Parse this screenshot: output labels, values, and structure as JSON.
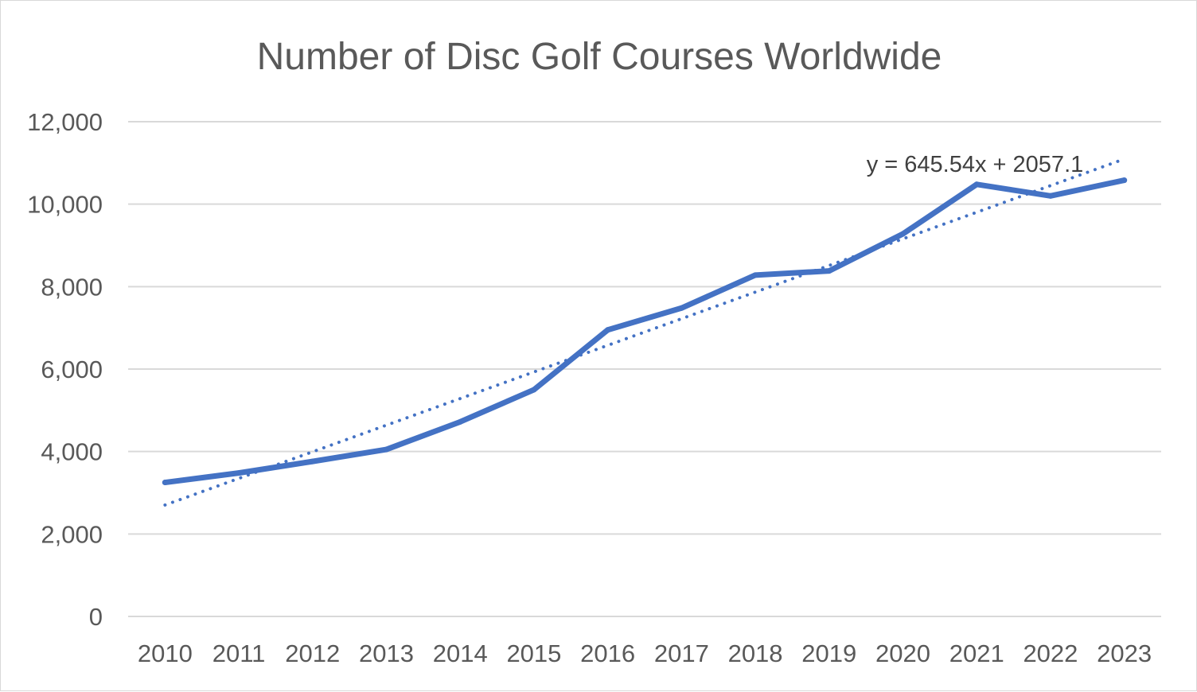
{
  "chart_data": {
    "type": "line",
    "title": "Number of Disc Golf Courses Worldwide",
    "xlabel": "",
    "ylabel": "",
    "categories": [
      "2010",
      "2011",
      "2012",
      "2013",
      "2014",
      "2015",
      "2016",
      "2017",
      "2018",
      "2019",
      "2020",
      "2021",
      "2022",
      "2023"
    ],
    "series": [
      {
        "values": [
          3250,
          3480,
          3760,
          4050,
          4720,
          5500,
          6950,
          7480,
          8280,
          8380,
          9280,
          10480,
          10200,
          10580
        ],
        "color": "#4472c4"
      }
    ],
    "trendline": {
      "type": "linear",
      "style": "dotted",
      "slope": 645.54,
      "intercept": 2057.1,
      "equation_label": "y = 645.54x + 2057.1",
      "color": "#4472c4"
    },
    "ylim": [
      0,
      12000
    ],
    "y_ticks": [
      0,
      2000,
      4000,
      6000,
      8000,
      10000,
      12000
    ],
    "y_tick_labels": [
      "0",
      "2,000",
      "4,000",
      "6,000",
      "8,000",
      "10,000",
      "12,000"
    ],
    "grid": true,
    "legend": "none",
    "colors": {
      "gridline": "#d9d9d9",
      "text": "#595959"
    }
  }
}
